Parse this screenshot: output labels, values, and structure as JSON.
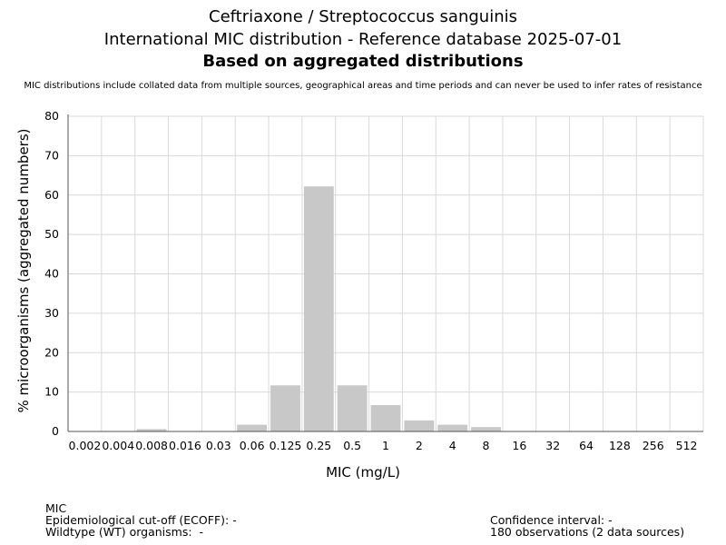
{
  "chart_data": {
    "type": "bar",
    "title": "Ceftriaxone / Streptococcus sanguinis",
    "subtitle": "International MIC distribution - Reference database 2025-07-01",
    "subtitle2": "Based on aggregated distributions",
    "disclaimer": "MIC distributions include collated data from multiple sources, geographical areas and time periods and can never be used to infer rates of resistance",
    "xlabel": "MIC (mg/L)",
    "ylabel": "% microorganisms (aggregated numbers)",
    "categories": [
      "0.002",
      "0.004",
      "0.008",
      "0.016",
      "0.03",
      "0.06",
      "0.125",
      "0.25",
      "0.5",
      "1",
      "2",
      "4",
      "8",
      "16",
      "32",
      "64",
      "128",
      "256",
      "512"
    ],
    "values": [
      0,
      0,
      0.6,
      0,
      0,
      1.7,
      11.7,
      62.2,
      11.7,
      6.7,
      2.8,
      1.7,
      1.1,
      0,
      0,
      0,
      0,
      0,
      0
    ],
    "ylim": [
      0,
      80
    ],
    "yticks": [
      "0",
      "10",
      "20",
      "30",
      "40",
      "50",
      "60",
      "70",
      "80"
    ],
    "grid": true,
    "colors": {
      "bar": "#c8c8c8",
      "grid": "#d9d9d9",
      "axis": "#555555"
    }
  },
  "footer": {
    "mic_label": "MIC",
    "ecoff": "Epidemiological cut-off (ECOFF): -",
    "wildtype": "Wildtype (WT) organisms:  -",
    "confidence": "Confidence interval: -",
    "observations": "180 observations (2 data sources)"
  }
}
